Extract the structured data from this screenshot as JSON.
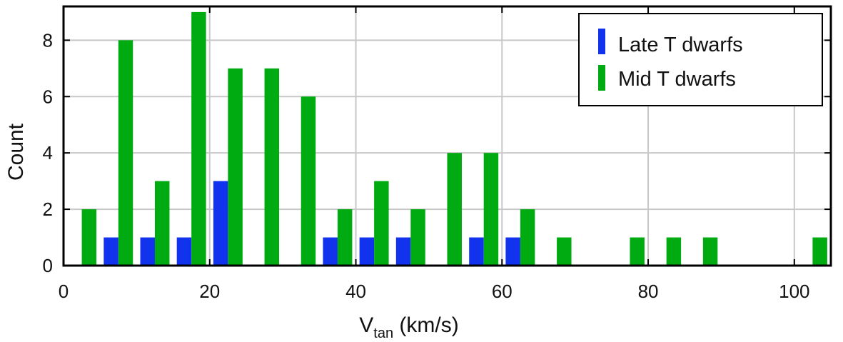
{
  "chart_data": {
    "type": "bar",
    "xlabel": "V",
    "xlabel_sub": "tan",
    "xlabel_suffix": " (km/s)",
    "ylabel": "Count",
    "xlim": [
      0,
      105
    ],
    "ylim": [
      0,
      9.2
    ],
    "x_ticks": [
      0,
      20,
      40,
      60,
      80,
      100
    ],
    "y_ticks": [
      0,
      2,
      4,
      6,
      8
    ],
    "grid": true,
    "legend_position": "top-right",
    "bin_width": 5,
    "series": [
      {
        "name": "Late T dwarfs",
        "color": "#1133ee",
        "bins": [
          5,
          10,
          15,
          20,
          35,
          40,
          45,
          55,
          60
        ],
        "values": [
          1,
          1,
          1,
          3,
          1,
          1,
          1,
          1,
          1
        ]
      },
      {
        "name": "Mid T dwarfs",
        "color": "#00aa11",
        "bins": [
          0,
          5,
          10,
          15,
          20,
          25,
          30,
          35,
          40,
          45,
          50,
          55,
          60,
          65,
          75,
          80,
          85,
          100
        ],
        "values": [
          2,
          8,
          3,
          9,
          7,
          7,
          6,
          2,
          3,
          2,
          4,
          4,
          2,
          1,
          1,
          1,
          1,
          1
        ]
      }
    ]
  }
}
